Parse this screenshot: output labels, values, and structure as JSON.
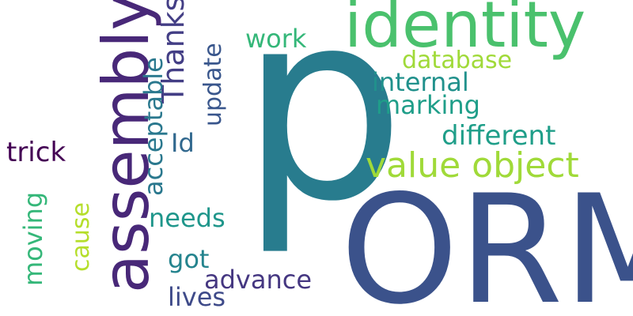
{
  "words": [
    {
      "text": "p",
      "color": "#287c8e"
    },
    {
      "text": "ORM",
      "color": "#3b528b"
    },
    {
      "text": "identity",
      "color": "#4ac16d"
    },
    {
      "text": "assembly",
      "color": "#482878"
    },
    {
      "text": "value object",
      "color": "#a0da39"
    },
    {
      "text": "Thanks",
      "color": "#433e85"
    },
    {
      "text": "acceptable",
      "color": "#2a788e"
    },
    {
      "text": "update",
      "color": "#39568c"
    },
    {
      "text": "work",
      "color": "#35b779"
    },
    {
      "text": "database",
      "color": "#a0da39"
    },
    {
      "text": "internal",
      "color": "#21918c"
    },
    {
      "text": "marking",
      "color": "#1f9e89"
    },
    {
      "text": "different",
      "color": "#1f9e89"
    },
    {
      "text": "Id",
      "color": "#31688e"
    },
    {
      "text": "trick",
      "color": "#440154"
    },
    {
      "text": "needs",
      "color": "#1f968b"
    },
    {
      "text": "moving",
      "color": "#35b779"
    },
    {
      "text": "cause",
      "color": "#b5de2b"
    },
    {
      "text": "got",
      "color": "#25848e"
    },
    {
      "text": "advance",
      "color": "#453781"
    },
    {
      "text": "lives",
      "color": "#3e4a89"
    }
  ]
}
